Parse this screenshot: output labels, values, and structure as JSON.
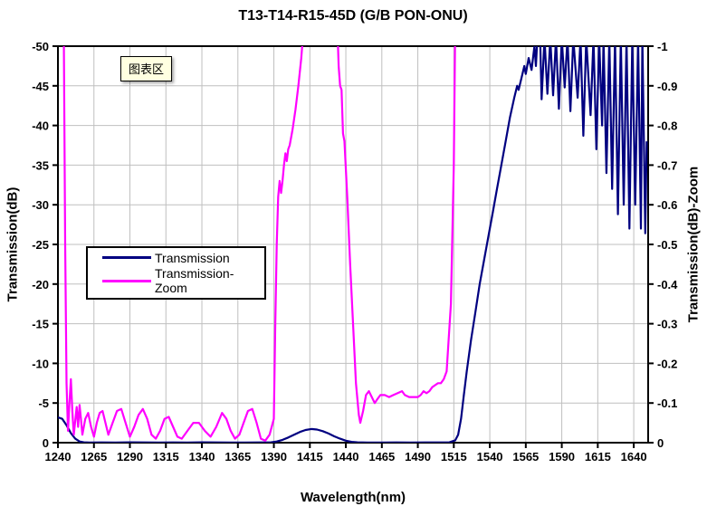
{
  "title": "T13-T14-R15-45D (G/B PON-ONU)",
  "tooltip": {
    "label": "图表区"
  },
  "legend": {
    "items": [
      {
        "label": "Transmission",
        "color": "#000080"
      },
      {
        "label": "Transmission-Zoom",
        "color": "#ff00ff"
      }
    ]
  },
  "colors": {
    "grid": "#bfbfbf",
    "plot_border": "#000000",
    "background": "#ffffff",
    "tooltip_bg": "#ffffe1"
  },
  "chart_data": {
    "type": "line",
    "title": "T13-T14-R15-45D (G/B PON-ONU)",
    "xlabel": "Wavelength(nm)",
    "grid": true,
    "legend_position": "inside-left",
    "x_range": [
      1240,
      1650
    ],
    "x_ticks": [
      1240,
      1265,
      1290,
      1315,
      1340,
      1365,
      1390,
      1415,
      1440,
      1465,
      1490,
      1515,
      1540,
      1565,
      1590,
      1615,
      1640
    ],
    "left_axis": {
      "label": "Transmission(dB)",
      "range": [
        -50,
        0
      ],
      "inverted": true,
      "ticks": [
        -50,
        -45,
        -40,
        -35,
        -30,
        -25,
        -20,
        -15,
        -10,
        -5,
        0
      ]
    },
    "right_axis": {
      "label": "Transmission(dB)-Zoom",
      "range": [
        -1,
        0
      ],
      "inverted": true,
      "ticks": [
        -1,
        -0.9,
        -0.8,
        -0.7,
        -0.6,
        -0.5,
        -0.4,
        -0.3,
        -0.2,
        -0.1,
        0
      ]
    },
    "series": [
      {
        "name": "Transmission",
        "axis": "left",
        "color": "#000080",
        "points": [
          [
            1240,
            -3.2
          ],
          [
            1243,
            -3.0
          ],
          [
            1246,
            -2.2
          ],
          [
            1249,
            -1.2
          ],
          [
            1252,
            -0.5
          ],
          [
            1255,
            -0.15
          ],
          [
            1258,
            -0.05
          ],
          [
            1262,
            -0.02
          ],
          [
            1270,
            -0.03
          ],
          [
            1280,
            -0.02
          ],
          [
            1290,
            -0.04
          ],
          [
            1300,
            -0.03
          ],
          [
            1310,
            -0.02
          ],
          [
            1320,
            -0.03
          ],
          [
            1330,
            -0.02
          ],
          [
            1340,
            -0.04
          ],
          [
            1350,
            -0.03
          ],
          [
            1360,
            -0.02
          ],
          [
            1370,
            -0.02
          ],
          [
            1380,
            -0.03
          ],
          [
            1388,
            -0.05
          ],
          [
            1392,
            -0.15
          ],
          [
            1396,
            -0.35
          ],
          [
            1400,
            -0.65
          ],
          [
            1404,
            -1.0
          ],
          [
            1408,
            -1.35
          ],
          [
            1412,
            -1.6
          ],
          [
            1416,
            -1.72
          ],
          [
            1420,
            -1.65
          ],
          [
            1424,
            -1.45
          ],
          [
            1428,
            -1.15
          ],
          [
            1432,
            -0.8
          ],
          [
            1436,
            -0.5
          ],
          [
            1440,
            -0.25
          ],
          [
            1444,
            -0.1
          ],
          [
            1448,
            -0.04
          ],
          [
            1455,
            -0.02
          ],
          [
            1465,
            -0.02
          ],
          [
            1475,
            -0.03
          ],
          [
            1485,
            -0.02
          ],
          [
            1495,
            -0.03
          ],
          [
            1505,
            -0.03
          ],
          [
            1512,
            -0.05
          ],
          [
            1516,
            -0.3
          ],
          [
            1518,
            -1
          ],
          [
            1520,
            -3
          ],
          [
            1522,
            -6
          ],
          [
            1524,
            -9
          ],
          [
            1527,
            -13
          ],
          [
            1530,
            -16.5
          ],
          [
            1533,
            -20
          ],
          [
            1536,
            -23
          ],
          [
            1539,
            -26
          ],
          [
            1542,
            -29
          ],
          [
            1545,
            -32
          ],
          [
            1548,
            -35
          ],
          [
            1551,
            -38
          ],
          [
            1554,
            -41
          ],
          [
            1557,
            -43.5
          ],
          [
            1559,
            -45
          ],
          [
            1560,
            -44.5
          ],
          [
            1562,
            -46
          ],
          [
            1564,
            -47.5
          ],
          [
            1565,
            -46.5
          ],
          [
            1567,
            -48.5
          ],
          [
            1569,
            -47
          ],
          [
            1571,
            -50
          ],
          [
            1572,
            -47.5
          ],
          [
            1573,
            -51
          ],
          [
            1575,
            -51
          ],
          [
            1576,
            -43.3
          ],
          [
            1578,
            -51
          ],
          [
            1580,
            -44
          ],
          [
            1582,
            -51
          ],
          [
            1584,
            -43.8
          ],
          [
            1586,
            -51
          ],
          [
            1588,
            -42.1
          ],
          [
            1590,
            -51
          ],
          [
            1592,
            -44.8
          ],
          [
            1594,
            -51
          ],
          [
            1596,
            -41.8
          ],
          [
            1598,
            -51
          ],
          [
            1601,
            -43.5
          ],
          [
            1603,
            -51
          ],
          [
            1605,
            -38.7
          ],
          [
            1607,
            -51
          ],
          [
            1610,
            -41.3
          ],
          [
            1612,
            -51
          ],
          [
            1614,
            -37
          ],
          [
            1616,
            -51
          ],
          [
            1618,
            -40
          ],
          [
            1619,
            -51
          ],
          [
            1621,
            -34
          ],
          [
            1623,
            -51
          ],
          [
            1625,
            -32
          ],
          [
            1627,
            -51
          ],
          [
            1629,
            -28.8
          ],
          [
            1631,
            -51
          ],
          [
            1633,
            -30
          ],
          [
            1635,
            -51
          ],
          [
            1637,
            -27
          ],
          [
            1639,
            -51
          ],
          [
            1641,
            -30
          ],
          [
            1643,
            -51
          ],
          [
            1645,
            -27
          ],
          [
            1646,
            -51
          ],
          [
            1648,
            -26.4
          ],
          [
            1649,
            -38
          ]
        ]
      },
      {
        "name": "Transmission-Zoom",
        "axis": "right",
        "color": "#ff00ff",
        "points": [
          [
            1240,
            -1.06
          ],
          [
            1244,
            -1.06
          ],
          [
            1245,
            -0.5
          ],
          [
            1246,
            -0.15
          ],
          [
            1247,
            -0.03
          ],
          [
            1248,
            -0.1
          ],
          [
            1249,
            -0.16
          ],
          [
            1250,
            -0.08
          ],
          [
            1251,
            -0.02
          ],
          [
            1253,
            -0.09
          ],
          [
            1254,
            -0.04
          ],
          [
            1255,
            -0.095
          ],
          [
            1256,
            -0.06
          ],
          [
            1257,
            -0.02
          ],
          [
            1259,
            -0.06
          ],
          [
            1261,
            -0.075
          ],
          [
            1263,
            -0.04
          ],
          [
            1265,
            -0.015
          ],
          [
            1267,
            -0.05
          ],
          [
            1269,
            -0.075
          ],
          [
            1271,
            -0.08
          ],
          [
            1273,
            -0.05
          ],
          [
            1275,
            -0.02
          ],
          [
            1278,
            -0.05
          ],
          [
            1281,
            -0.08
          ],
          [
            1284,
            -0.085
          ],
          [
            1287,
            -0.05
          ],
          [
            1290,
            -0.015
          ],
          [
            1293,
            -0.04
          ],
          [
            1296,
            -0.07
          ],
          [
            1299,
            -0.085
          ],
          [
            1302,
            -0.06
          ],
          [
            1305,
            -0.02
          ],
          [
            1308,
            -0.01
          ],
          [
            1311,
            -0.03
          ],
          [
            1314,
            -0.06
          ],
          [
            1317,
            -0.065
          ],
          [
            1320,
            -0.04
          ],
          [
            1323,
            -0.015
          ],
          [
            1326,
            -0.01
          ],
          [
            1330,
            -0.03
          ],
          [
            1334,
            -0.05
          ],
          [
            1338,
            -0.05
          ],
          [
            1342,
            -0.03
          ],
          [
            1346,
            -0.015
          ],
          [
            1350,
            -0.04
          ],
          [
            1354,
            -0.075
          ],
          [
            1357,
            -0.06
          ],
          [
            1360,
            -0.03
          ],
          [
            1363,
            -0.01
          ],
          [
            1366,
            -0.02
          ],
          [
            1369,
            -0.05
          ],
          [
            1372,
            -0.08
          ],
          [
            1375,
            -0.085
          ],
          [
            1378,
            -0.05
          ],
          [
            1381,
            -0.01
          ],
          [
            1384,
            -0.005
          ],
          [
            1387,
            -0.02
          ],
          [
            1390,
            -0.06
          ],
          [
            1391,
            -0.3
          ],
          [
            1392,
            -0.5
          ],
          [
            1393,
            -0.62
          ],
          [
            1394,
            -0.66
          ],
          [
            1395,
            -0.63
          ],
          [
            1396,
            -0.66
          ],
          [
            1397,
            -0.7
          ],
          [
            1398,
            -0.73
          ],
          [
            1399,
            -0.71
          ],
          [
            1400,
            -0.74
          ],
          [
            1401,
            -0.75
          ],
          [
            1403,
            -0.79
          ],
          [
            1405,
            -0.84
          ],
          [
            1407,
            -0.9
          ],
          [
            1409,
            -0.97
          ],
          [
            1411,
            -1.06
          ],
          [
            1434,
            -1.06
          ],
          [
            1435,
            -0.95
          ],
          [
            1436,
            -0.9
          ],
          [
            1437,
            -0.89
          ],
          [
            1438,
            -0.78
          ],
          [
            1439,
            -0.76
          ],
          [
            1441,
            -0.62
          ],
          [
            1443,
            -0.45
          ],
          [
            1445,
            -0.3
          ],
          [
            1447,
            -0.15
          ],
          [
            1449,
            -0.07
          ],
          [
            1450,
            -0.05
          ],
          [
            1452,
            -0.08
          ],
          [
            1454,
            -0.12
          ],
          [
            1456,
            -0.13
          ],
          [
            1458,
            -0.115
          ],
          [
            1460,
            -0.1
          ],
          [
            1462,
            -0.11
          ],
          [
            1464,
            -0.12
          ],
          [
            1467,
            -0.12
          ],
          [
            1470,
            -0.115
          ],
          [
            1473,
            -0.12
          ],
          [
            1476,
            -0.125
          ],
          [
            1479,
            -0.13
          ],
          [
            1481,
            -0.12
          ],
          [
            1484,
            -0.115
          ],
          [
            1487,
            -0.115
          ],
          [
            1490,
            -0.115
          ],
          [
            1492,
            -0.12
          ],
          [
            1494,
            -0.13
          ],
          [
            1496,
            -0.125
          ],
          [
            1498,
            -0.13
          ],
          [
            1500,
            -0.14
          ],
          [
            1502,
            -0.145
          ],
          [
            1504,
            -0.15
          ],
          [
            1506,
            -0.15
          ],
          [
            1508,
            -0.16
          ],
          [
            1510,
            -0.18
          ],
          [
            1513,
            -0.35
          ],
          [
            1515,
            -0.7
          ],
          [
            1516,
            -1.06
          ]
        ]
      }
    ]
  }
}
